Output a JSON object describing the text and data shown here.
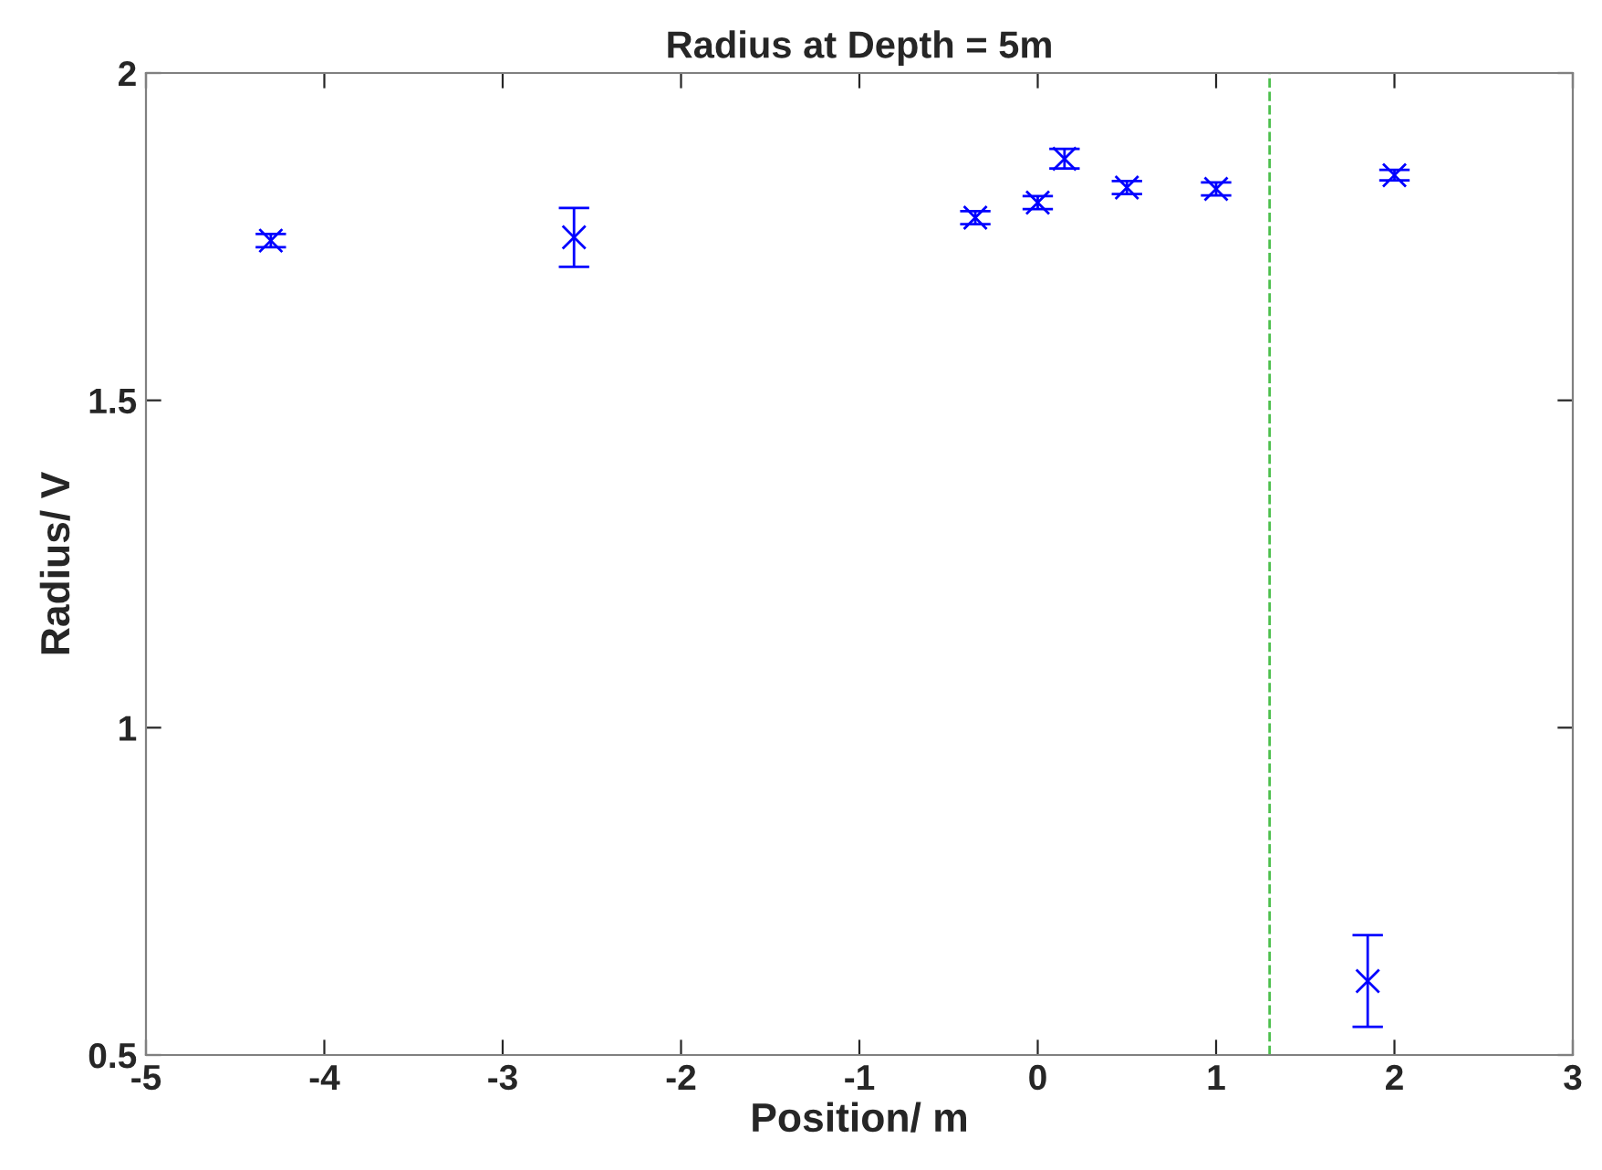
{
  "chart_data": {
    "type": "scatter",
    "title": "Radius at Depth = 5m",
    "xlabel": "Position/ m",
    "ylabel": "Radius/ V",
    "x": [
      -4.3,
      -2.6,
      -0.35,
      0,
      0.15,
      0.5,
      1,
      1.85,
      2
    ],
    "series": [
      {
        "color": "#0000ff",
        "values": [
          1.744,
          1.749,
          1.779,
          1.802,
          1.869,
          1.825,
          1.823,
          0.613,
          1.844
        ],
        "errors": [
          0.01,
          0.045,
          0.01,
          0.01,
          0.015,
          0.01,
          0.01,
          0.07,
          0.008
        ]
      }
    ],
    "marker": "cross",
    "xlim": [
      -5,
      3
    ],
    "xticks": [
      -5,
      -4,
      -3,
      -2,
      -1,
      0,
      1,
      2,
      3
    ],
    "ylim": [
      0.5,
      2
    ],
    "yticks": [
      0.5,
      1,
      1.5,
      2
    ],
    "grid": false,
    "legend": false,
    "ref_lines": [
      {
        "axis": "x",
        "value": 1.3,
        "color": "#4cbf4c",
        "line_style": "dashed"
      }
    ]
  }
}
